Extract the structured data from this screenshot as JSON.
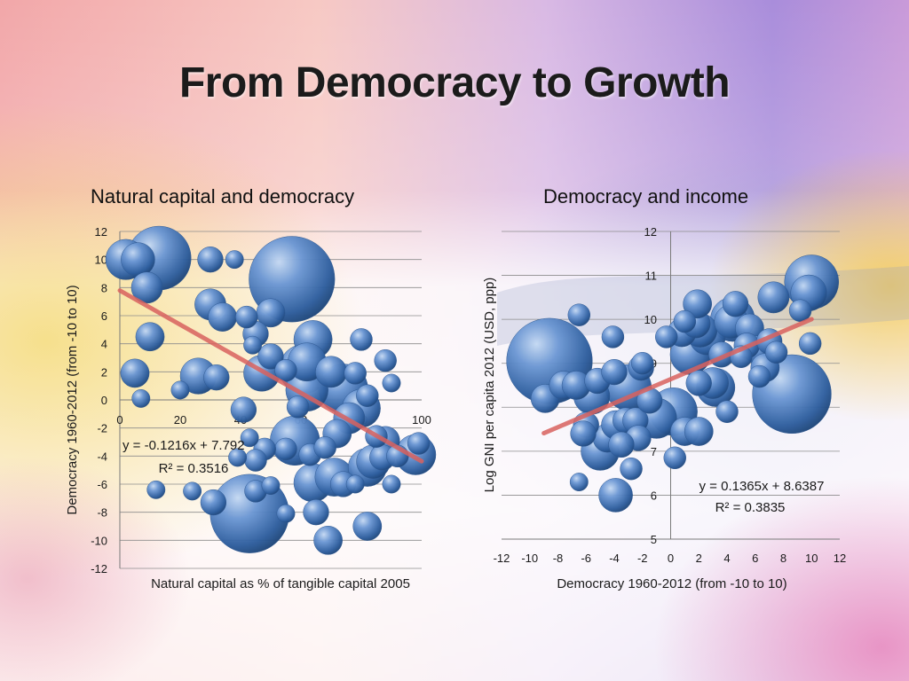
{
  "slide": {
    "title": "From Democracy to Growth"
  },
  "colors": {
    "bubble": "#3f72b8",
    "trendline": "#d9625f"
  },
  "chart_data": [
    {
      "type": "scatter",
      "title": "Natural capital and democracy",
      "xlabel": "Natural capital as % of tangible capital 2005",
      "ylabel": "Democracy 1960-2012 (from -10 to 10)",
      "xlim": [
        0,
        100
      ],
      "ylim": [
        -12,
        12
      ],
      "xticks": [
        0,
        20,
        40,
        60,
        80,
        100
      ],
      "yticks": [
        -12,
        -10,
        -8,
        -6,
        -4,
        -2,
        0,
        2,
        4,
        6,
        8,
        10,
        12
      ],
      "grid": true,
      "bubble": true,
      "trendline": {
        "slope": -0.1216,
        "intercept": 7.792,
        "x_range": [
          0,
          100
        ]
      },
      "equation": "y = -0.1216x + 7.792",
      "r_squared": "R² = 0.3516",
      "points": [
        {
          "x": 2,
          "y": 10,
          "s": 10
        },
        {
          "x": 6,
          "y": 10,
          "s": 7
        },
        {
          "x": 13,
          "y": 10.1,
          "s": 25
        },
        {
          "x": 9,
          "y": 8,
          "s": 6
        },
        {
          "x": 10,
          "y": 4.5,
          "s": 5
        },
        {
          "x": 5,
          "y": 1.9,
          "s": 5
        },
        {
          "x": 7,
          "y": 0.1,
          "s": 2
        },
        {
          "x": 12,
          "y": -6.4,
          "s": 2
        },
        {
          "x": 20,
          "y": 0.7,
          "s": 2
        },
        {
          "x": 26,
          "y": 1.7,
          "s": 8
        },
        {
          "x": 32,
          "y": 1.6,
          "s": 4
        },
        {
          "x": 30,
          "y": 6.8,
          "s": 6
        },
        {
          "x": 34,
          "y": 5.9,
          "s": 5
        },
        {
          "x": 30,
          "y": 10,
          "s": 4
        },
        {
          "x": 38,
          "y": 10,
          "s": 2
        },
        {
          "x": 42,
          "y": 5.9,
          "s": 3
        },
        {
          "x": 45,
          "y": 4.7,
          "s": 4
        },
        {
          "x": 44,
          "y": 3.9,
          "s": 2
        },
        {
          "x": 47,
          "y": 1.9,
          "s": 8
        },
        {
          "x": 50,
          "y": 3.1,
          "s": 4
        },
        {
          "x": 50,
          "y": 6.2,
          "s": 5
        },
        {
          "x": 57,
          "y": 8.6,
          "s": 45
        },
        {
          "x": 64,
          "y": 4.3,
          "s": 9
        },
        {
          "x": 62,
          "y": 2.7,
          "s": 9
        },
        {
          "x": 61,
          "y": 2.2,
          "s": 15
        },
        {
          "x": 62,
          "y": 0.7,
          "s": 11
        },
        {
          "x": 70,
          "y": 2.0,
          "s": 6
        },
        {
          "x": 74,
          "y": 0.8,
          "s": 15
        },
        {
          "x": 76,
          "y": -1.3,
          "s": 6
        },
        {
          "x": 80,
          "y": -0.6,
          "s": 9
        },
        {
          "x": 82,
          "y": 0.3,
          "s": 3
        },
        {
          "x": 80,
          "y": 4.3,
          "s": 3
        },
        {
          "x": 78,
          "y": 1.9,
          "s": 3
        },
        {
          "x": 59,
          "y": -0.5,
          "s": 3
        },
        {
          "x": 58,
          "y": -2.9,
          "s": 15
        },
        {
          "x": 55,
          "y": -3.5,
          "s": 3
        },
        {
          "x": 48,
          "y": -3.5,
          "s": 3
        },
        {
          "x": 45,
          "y": -4.3,
          "s": 3
        },
        {
          "x": 43,
          "y": -2.7,
          "s": 2
        },
        {
          "x": 41,
          "y": -0.7,
          "s": 4
        },
        {
          "x": 39,
          "y": -4.1,
          "s": 2
        },
        {
          "x": 43,
          "y": -8.1,
          "s": 38
        },
        {
          "x": 31,
          "y": -7.3,
          "s": 4
        },
        {
          "x": 45,
          "y": -6.5,
          "s": 3
        },
        {
          "x": 50,
          "y": -6.1,
          "s": 2
        },
        {
          "x": 63,
          "y": -3.9,
          "s": 3
        },
        {
          "x": 64,
          "y": -5.9,
          "s": 9
        },
        {
          "x": 71,
          "y": -5.5,
          "s": 9
        },
        {
          "x": 74,
          "y": -6.0,
          "s": 4
        },
        {
          "x": 78,
          "y": -6.0,
          "s": 2
        },
        {
          "x": 82,
          "y": -4.8,
          "s": 9
        },
        {
          "x": 84,
          "y": -4.4,
          "s": 7
        },
        {
          "x": 87,
          "y": -4.1,
          "s": 4
        },
        {
          "x": 88,
          "y": -2.9,
          "s": 5
        },
        {
          "x": 85,
          "y": -2.6,
          "s": 3
        },
        {
          "x": 92,
          "y": -4.0,
          "s": 3
        },
        {
          "x": 98,
          "y": -3.9,
          "s": 10
        },
        {
          "x": 99,
          "y": -3.1,
          "s": 3
        },
        {
          "x": 82,
          "y": -9.0,
          "s": 5
        },
        {
          "x": 69,
          "y": -10.0,
          "s": 5
        },
        {
          "x": 65,
          "y": -8.0,
          "s": 4
        },
        {
          "x": 55,
          "y": -8.1,
          "s": 2
        },
        {
          "x": 72,
          "y": -2.4,
          "s": 5
        },
        {
          "x": 68,
          "y": -3.4,
          "s": 3
        },
        {
          "x": 90,
          "y": -6.0,
          "s": 2
        },
        {
          "x": 88,
          "y": 2.8,
          "s": 3
        },
        {
          "x": 90,
          "y": 1.2,
          "s": 2
        },
        {
          "x": 55,
          "y": 2.1,
          "s": 3
        },
        {
          "x": 24,
          "y": -6.5,
          "s": 2
        }
      ]
    },
    {
      "type": "scatter",
      "title": "Democracy and income",
      "xlabel": "Democracy 1960-2012 (from -10 to 10)",
      "ylabel": "Log GNI per capita 2012 (USD, ppp)",
      "xlim": [
        -12,
        12
      ],
      "ylim": [
        5,
        12
      ],
      "xticks": [
        -12,
        -10,
        -8,
        -6,
        -4,
        -2,
        0,
        2,
        4,
        6,
        8,
        10,
        12
      ],
      "yticks": [
        5,
        6,
        7,
        8,
        9,
        10,
        11,
        12
      ],
      "grid": true,
      "bubble": true,
      "trendline": {
        "slope": 0.1365,
        "intercept": 8.6387,
        "x_range": [
          -9,
          10
        ]
      },
      "equation": "y = 0.1365x + 8.6387",
      "r_squared": "R² = 0.3835",
      "points": [
        {
          "x": -8.6,
          "y": 9.05,
          "s": 45
        },
        {
          "x": -8.9,
          "y": 8.2,
          "s": 5
        },
        {
          "x": -7.6,
          "y": 8.5,
          "s": 5
        },
        {
          "x": -6.7,
          "y": 8.5,
          "s": 5
        },
        {
          "x": -6.5,
          "y": 10.1,
          "s": 3
        },
        {
          "x": -5.6,
          "y": 8.25,
          "s": 8
        },
        {
          "x": -5.2,
          "y": 8.6,
          "s": 4
        },
        {
          "x": -4.0,
          "y": 8.8,
          "s": 4
        },
        {
          "x": -3.0,
          "y": 8.45,
          "s": 13
        },
        {
          "x": -2.1,
          "y": 8.9,
          "s": 4
        },
        {
          "x": -6.0,
          "y": 7.6,
          "s": 4
        },
        {
          "x": -4.5,
          "y": 7.3,
          "s": 5
        },
        {
          "x": -5.0,
          "y": 7.0,
          "s": 9
        },
        {
          "x": -3.9,
          "y": 7.6,
          "s": 5
        },
        {
          "x": -3.2,
          "y": 7.7,
          "s": 4
        },
        {
          "x": -2.5,
          "y": 7.7,
          "s": 4
        },
        {
          "x": -2.3,
          "y": 7.3,
          "s": 4
        },
        {
          "x": -3.5,
          "y": 7.15,
          "s": 4
        },
        {
          "x": -2.8,
          "y": 6.6,
          "s": 3
        },
        {
          "x": -3.9,
          "y": 6.0,
          "s": 7
        },
        {
          "x": -6.5,
          "y": 6.3,
          "s": 2
        },
        {
          "x": -6.2,
          "y": 7.4,
          "s": 4
        },
        {
          "x": -1.5,
          "y": 8.15,
          "s": 4
        },
        {
          "x": -1.0,
          "y": 7.75,
          "s": 10
        },
        {
          "x": 0.2,
          "y": 7.9,
          "s": 14
        },
        {
          "x": 1.0,
          "y": 7.45,
          "s": 5
        },
        {
          "x": 2.0,
          "y": 7.45,
          "s": 5
        },
        {
          "x": 0.3,
          "y": 6.85,
          "s": 3
        },
        {
          "x": 0.8,
          "y": 9.7,
          "s": 5
        },
        {
          "x": 1.0,
          "y": 9.95,
          "s": 3
        },
        {
          "x": 1.8,
          "y": 9.9,
          "s": 5
        },
        {
          "x": 1.9,
          "y": 10.35,
          "s": 5
        },
        {
          "x": 2.1,
          "y": 9.75,
          "s": 7
        },
        {
          "x": 1.4,
          "y": 9.2,
          "s": 10
        },
        {
          "x": 2.6,
          "y": 9.6,
          "s": 8
        },
        {
          "x": 3.0,
          "y": 8.55,
          "s": 6
        },
        {
          "x": 2.0,
          "y": 8.55,
          "s": 4
        },
        {
          "x": 3.2,
          "y": 8.45,
          "s": 9
        },
        {
          "x": 4.3,
          "y": 9.95,
          "s": 7
        },
        {
          "x": 4.6,
          "y": 10.35,
          "s": 4
        },
        {
          "x": 4.4,
          "y": 10.0,
          "s": 12
        },
        {
          "x": 5.6,
          "y": 9.8,
          "s": 5
        },
        {
          "x": 5.4,
          "y": 9.4,
          "s": 4
        },
        {
          "x": 5.0,
          "y": 9.15,
          "s": 3
        },
        {
          "x": 6.2,
          "y": 9.3,
          "s": 5
        },
        {
          "x": 6.7,
          "y": 8.9,
          "s": 5
        },
        {
          "x": 6.3,
          "y": 8.7,
          "s": 3
        },
        {
          "x": 7.0,
          "y": 9.5,
          "s": 4
        },
        {
          "x": 7.5,
          "y": 9.25,
          "s": 3
        },
        {
          "x": 7.3,
          "y": 10.5,
          "s": 6
        },
        {
          "x": 8.6,
          "y": 8.3,
          "s": 38
        },
        {
          "x": 9.2,
          "y": 10.2,
          "s": 3
        },
        {
          "x": 9.8,
          "y": 10.6,
          "s": 8
        },
        {
          "x": 10.0,
          "y": 10.85,
          "s": 18
        },
        {
          "x": 9.9,
          "y": 9.45,
          "s": 3
        },
        {
          "x": 4.0,
          "y": 7.9,
          "s": 3
        },
        {
          "x": -0.3,
          "y": 9.6,
          "s": 3
        },
        {
          "x": -2.0,
          "y": 9.0,
          "s": 3
        },
        {
          "x": -4.1,
          "y": 9.6,
          "s": 3
        },
        {
          "x": 3.6,
          "y": 9.2,
          "s": 4
        }
      ]
    }
  ]
}
